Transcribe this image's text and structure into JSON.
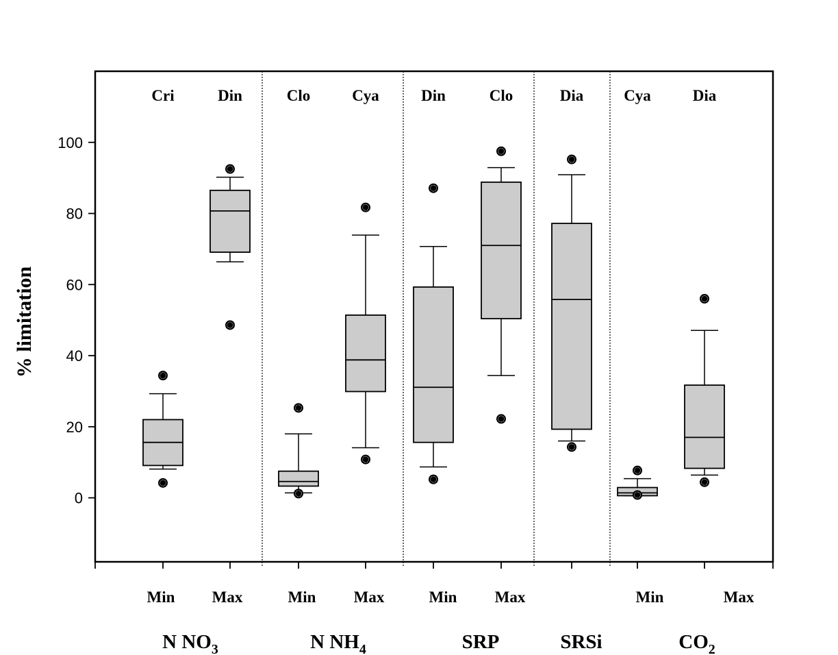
{
  "chart_data": {
    "type": "box",
    "title": "",
    "ylabel": "% limitation",
    "ylim": [
      -18,
      120
    ],
    "yticks": [
      0,
      20,
      40,
      60,
      80,
      100
    ],
    "grid": false,
    "style": {
      "box_fill": "#cccccc",
      "stroke": "#000000"
    },
    "groups": [
      {
        "label": "N NO",
        "sub": "3",
        "boxes": [
          0,
          1
        ]
      },
      {
        "label": "N NH",
        "sub": "4",
        "boxes": [
          2,
          3
        ]
      },
      {
        "label": "SRP",
        "sub": "",
        "boxes": [
          4,
          5
        ]
      },
      {
        "label": "SRSi",
        "sub": "",
        "boxes": [
          6
        ]
      },
      {
        "label": "CO",
        "sub": "2",
        "boxes": [
          7,
          8
        ]
      }
    ],
    "boxes": [
      {
        "category": "Min",
        "taxon": "Cri",
        "whisker_low": 8.1,
        "q1": 9.1,
        "median": 15.6,
        "q3": 22.0,
        "whisker_high": 29.3,
        "outliers": [
          34.4,
          4.2
        ]
      },
      {
        "category": "Max",
        "taxon": "Din",
        "whisker_low": 66.4,
        "q1": 69.1,
        "median": 80.7,
        "q3": 86.5,
        "whisker_high": 90.2,
        "outliers": [
          92.5,
          48.6
        ]
      },
      {
        "category": "Min",
        "taxon": "Clo",
        "whisker_low": 1.4,
        "q1": 3.3,
        "median": 4.6,
        "q3": 7.5,
        "whisker_high": 18.0,
        "outliers": [
          25.3,
          1.2
        ]
      },
      {
        "category": "Max",
        "taxon": "Cya",
        "whisker_low": 14.1,
        "q1": 29.9,
        "median": 38.8,
        "q3": 51.4,
        "whisker_high": 73.9,
        "outliers": [
          81.7,
          10.8
        ]
      },
      {
        "category": "Min",
        "taxon": "Din",
        "whisker_low": 8.7,
        "q1": 15.6,
        "median": 31.1,
        "q3": 59.3,
        "whisker_high": 70.7,
        "outliers": [
          87.1,
          5.2
        ]
      },
      {
        "category": "Max",
        "taxon": "Clo",
        "whisker_low": 34.4,
        "q1": 50.4,
        "median": 71.0,
        "q3": 88.8,
        "whisker_high": 92.9,
        "outliers": [
          97.5,
          22.2
        ]
      },
      {
        "category": "",
        "taxon": "Dia",
        "whisker_low": 16.0,
        "q1": 19.3,
        "median": 55.8,
        "q3": 77.2,
        "whisker_high": 90.9,
        "outliers": [
          95.2,
          14.3
        ]
      },
      {
        "category": "Min",
        "taxon": "Cya",
        "whisker_low": 0.6,
        "q1": 0.6,
        "median": 1.4,
        "q3": 2.9,
        "whisker_high": 5.4,
        "outliers": [
          7.7,
          0.8
        ]
      },
      {
        "category": "Max",
        "taxon": "Dia",
        "whisker_low": 6.4,
        "q1": 8.3,
        "median": 17.0,
        "q3": 31.7,
        "whisker_high": 47.1,
        "outliers": [
          56.0,
          4.4
        ]
      }
    ]
  }
}
